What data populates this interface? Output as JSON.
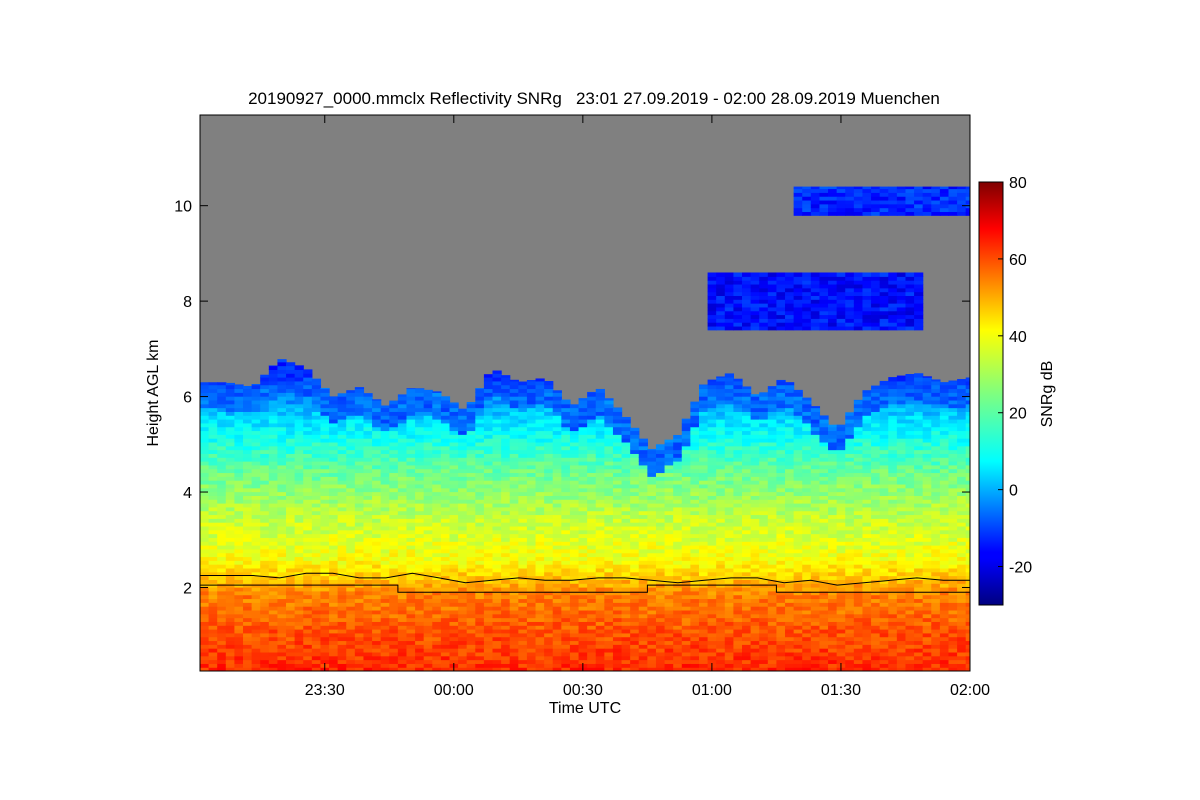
{
  "chart_data": {
    "type": "heatmap",
    "title": "20190927_0000.mmclx Reflectivity SNRg   23:01 27.09.2019 - 02:00 28.09.2019 Muenchen",
    "xlabel": "Time UTC",
    "ylabel": "Height AGL km",
    "x_unit": "minutes after 23:01 UTC",
    "xlim": [
      0,
      179
    ],
    "ylim": [
      0.25,
      11.9
    ],
    "x_ticks": [
      {
        "value": 29,
        "label": "23:30"
      },
      {
        "value": 59,
        "label": "00:00"
      },
      {
        "value": 89,
        "label": "00:30"
      },
      {
        "value": 119,
        "label": "01:00"
      },
      {
        "value": 149,
        "label": "01:30"
      },
      {
        "value": 179,
        "label": "02:00"
      }
    ],
    "y_ticks": [
      {
        "value": 2,
        "label": "2"
      },
      {
        "value": 4,
        "label": "4"
      },
      {
        "value": 6,
        "label": "6"
      },
      {
        "value": 8,
        "label": "8"
      },
      {
        "value": 10,
        "label": "10"
      }
    ],
    "background_color": "#808080",
    "colorbar": {
      "label": "SNRg dB",
      "colormap": "jet",
      "range": [
        -30,
        80
      ],
      "ticks": [
        {
          "value": -20,
          "label": "-20"
        },
        {
          "value": 0,
          "label": "0"
        },
        {
          "value": 20,
          "label": "20"
        },
        {
          "value": 40,
          "label": "40"
        },
        {
          "value": 60,
          "label": "60"
        },
        {
          "value": 80,
          "label": "80"
        }
      ]
    },
    "cloud_regions": [
      {
        "name": "main-precip",
        "x_start": 0,
        "x_end": 179,
        "base_km": 0.25,
        "top_km": [
          6.3,
          6.3,
          6.2,
          6.8,
          6.6,
          6.0,
          6.2,
          5.8,
          6.2,
          6.1,
          5.7,
          6.6,
          6.3,
          6.4,
          5.8,
          6.2,
          5.6,
          4.9,
          5.2,
          6.3,
          6.5,
          6.0,
          6.4,
          5.9,
          5.3,
          6.1,
          6.4,
          6.5,
          6.3,
          6.4
        ]
      },
      {
        "name": "cirrus-8km",
        "x_start": 118,
        "x_end": 167,
        "base_km": 7.4,
        "top_km": 8.6,
        "mean_dbz": -15
      },
      {
        "name": "cirrus-10km",
        "x_start": 138,
        "x_end": 179,
        "base_km": 9.8,
        "top_km": 10.4,
        "mean_dbz": -12
      }
    ],
    "melting_layer_height_km": [
      2.25,
      2.25,
      2.25,
      2.2,
      2.3,
      2.3,
      2.2,
      2.2,
      2.3,
      2.2,
      2.1,
      2.15,
      2.2,
      2.15,
      2.15,
      2.2,
      2.2,
      2.15,
      2.1,
      2.15,
      2.2,
      2.2,
      2.1,
      2.15,
      2.05,
      2.1,
      2.15,
      2.2,
      2.15,
      2.15
    ],
    "cloud_base_step_km": [
      {
        "x": 0,
        "y": 2.05
      },
      {
        "x": 46,
        "y": 1.9
      },
      {
        "x": 104,
        "y": 2.05
      },
      {
        "x": 134,
        "y": 1.9
      },
      {
        "x": 179,
        "y": 1.9
      }
    ],
    "snr_profile": [
      {
        "h": 0.25,
        "db": 62
      },
      {
        "h": 1.0,
        "db": 58
      },
      {
        "h": 1.9,
        "db": 52
      },
      {
        "h": 2.2,
        "db": 45
      },
      {
        "h": 2.6,
        "db": 38
      },
      {
        "h": 3.5,
        "db": 32
      },
      {
        "h": 4.5,
        "db": 22
      },
      {
        "h": 5.5,
        "db": 8
      },
      {
        "h": 6.5,
        "db": -12
      }
    ],
    "grid": false,
    "legend": "colorbar-right"
  }
}
